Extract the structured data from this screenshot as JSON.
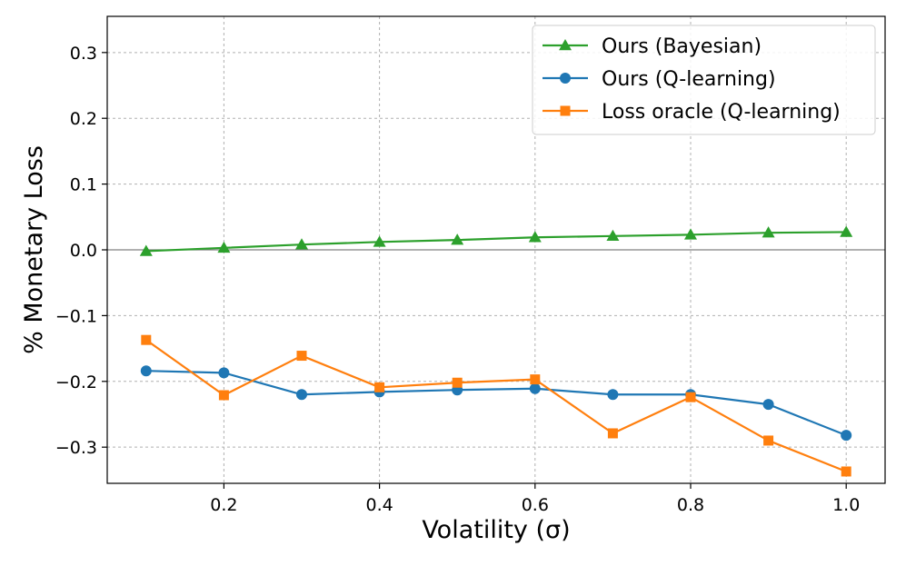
{
  "chart_data": {
    "type": "line",
    "title": "",
    "xlabel": "Volatility (σ)",
    "ylabel": "% Monetary Loss",
    "xlim": [
      0.05,
      1.05
    ],
    "ylim": [
      -0.355,
      0.355
    ],
    "grid": true,
    "legend_position": "top-right",
    "x": [
      0.1,
      0.2,
      0.3,
      0.4,
      0.5,
      0.6,
      0.7,
      0.8,
      0.9,
      1.0
    ],
    "x_ticks": [
      0.2,
      0.4,
      0.6,
      0.8,
      1.0
    ],
    "x_tick_labels": [
      "0.2",
      "0.4",
      "0.6",
      "0.8",
      "1.0"
    ],
    "y_ticks": [
      0.3,
      0.2,
      0.1,
      0.0,
      -0.1,
      -0.2,
      -0.3
    ],
    "y_tick_labels": [
      "0.3",
      "0.2",
      "0.1",
      "0.0",
      "−0.1",
      "−0.2",
      "−0.3"
    ],
    "reference_line_y": 0.0,
    "series": [
      {
        "name": "Ours (Bayesian)",
        "color": "#2ca02c",
        "marker": "triangle",
        "values": [
          -0.002,
          0.003,
          0.008,
          0.012,
          0.015,
          0.019,
          0.021,
          0.023,
          0.026,
          0.027
        ]
      },
      {
        "name": "Ours (Q-learning)",
        "color": "#1f77b4",
        "marker": "circle",
        "values": [
          -0.184,
          -0.187,
          -0.22,
          -0.216,
          -0.213,
          -0.211,
          -0.22,
          -0.22,
          -0.235,
          -0.282
        ]
      },
      {
        "name": "Loss oracle (Q-learning)",
        "color": "#ff7f0e",
        "marker": "square",
        "values": [
          -0.137,
          -0.221,
          -0.161,
          -0.209,
          -0.202,
          -0.197,
          -0.279,
          -0.224,
          -0.29,
          -0.337
        ]
      }
    ]
  }
}
